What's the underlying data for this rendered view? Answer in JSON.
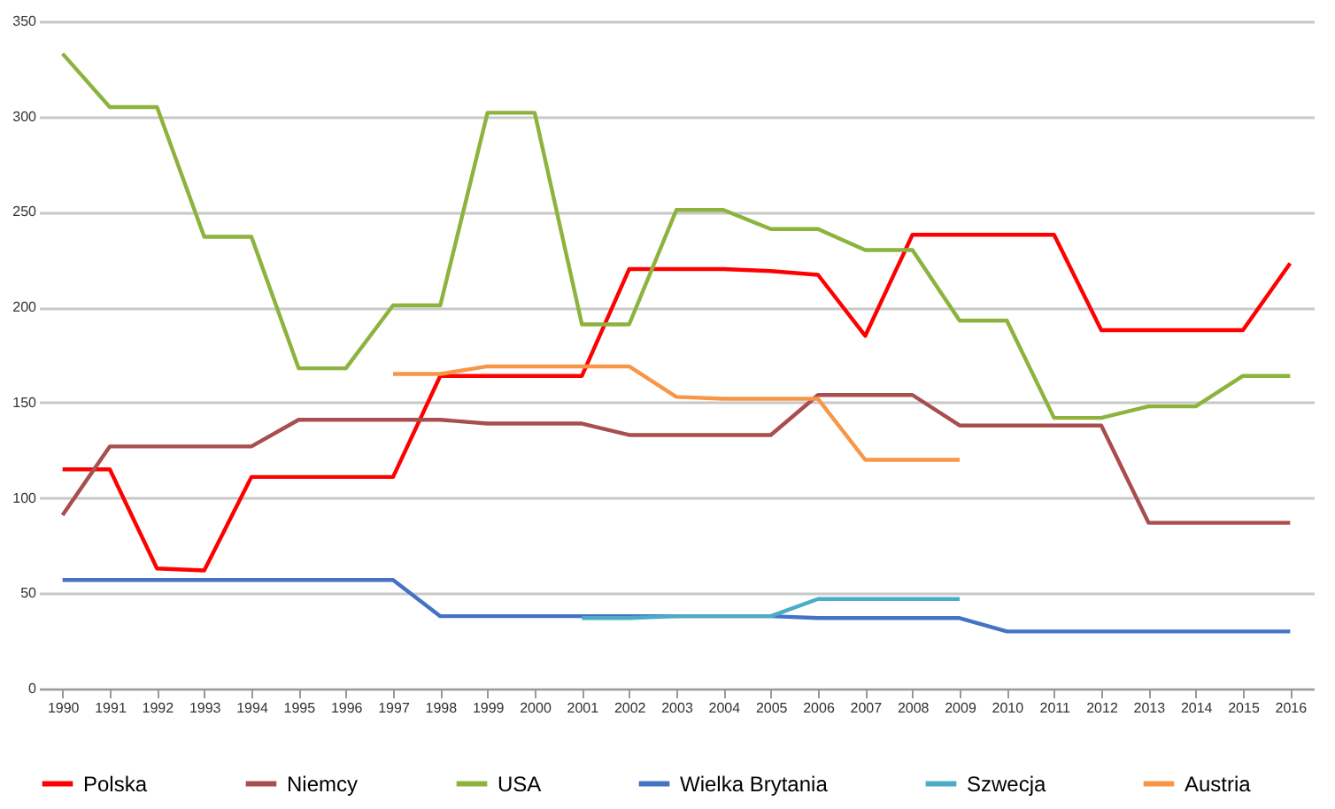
{
  "chart_data": {
    "type": "line",
    "categories": [
      "1990",
      "1991",
      "1992",
      "1993",
      "1994",
      "1995",
      "1996",
      "1997",
      "1998",
      "1999",
      "2000",
      "2001",
      "2002",
      "2003",
      "2004",
      "2005",
      "2006",
      "2007",
      "2008",
      "2009",
      "2010",
      "2011",
      "2012",
      "2013",
      "2014",
      "2015",
      "2016"
    ],
    "series": [
      {
        "name": "Polska",
        "color": "#ff0000",
        "values": [
          115,
          115,
          63,
          62,
          111,
          111,
          111,
          111,
          164,
          164,
          164,
          164,
          220,
          220,
          220,
          219,
          217,
          185,
          238,
          238,
          238,
          238,
          188,
          188,
          188,
          188,
          223
        ]
      },
      {
        "name": "Niemcy",
        "color": "#a84e4e",
        "values": [
          91,
          127,
          127,
          127,
          127,
          141,
          141,
          141,
          141,
          139,
          139,
          139,
          133,
          133,
          133,
          133,
          154,
          154,
          154,
          138,
          138,
          138,
          138,
          87,
          87,
          87,
          87
        ]
      },
      {
        "name": "USA",
        "color": "#8db33e",
        "values": [
          333,
          305,
          305,
          237,
          237,
          168,
          168,
          201,
          201,
          302,
          302,
          191,
          191,
          251,
          251,
          241,
          241,
          230,
          230,
          193,
          193,
          142,
          142,
          148,
          148,
          164,
          164
        ]
      },
      {
        "name": "Wielka Brytania",
        "color": "#4472c4",
        "values": [
          57,
          57,
          57,
          57,
          57,
          57,
          57,
          57,
          38,
          38,
          38,
          38,
          38,
          38,
          38,
          38,
          37,
          37,
          37,
          37,
          30,
          30,
          30,
          30,
          30,
          30,
          30
        ]
      },
      {
        "name": "Szwecja",
        "color": "#4bacc6",
        "values": [
          null,
          null,
          null,
          null,
          null,
          null,
          null,
          null,
          null,
          null,
          null,
          37,
          37,
          38,
          38,
          38,
          47,
          47,
          47,
          47,
          null,
          null,
          null,
          null,
          null,
          null,
          null
        ]
      },
      {
        "name": "Austria",
        "color": "#f79646",
        "values": [
          null,
          null,
          null,
          null,
          null,
          null,
          null,
          165,
          165,
          169,
          169,
          169,
          169,
          153,
          152,
          152,
          152,
          120,
          120,
          120,
          null,
          null,
          null,
          null,
          null,
          null,
          null
        ]
      }
    ],
    "ylim": [
      0,
      350
    ],
    "yticks": [
      0,
      50,
      100,
      150,
      200,
      250,
      300,
      350
    ],
    "grid": "y",
    "legend": "bottom",
    "marker": "none",
    "line_style": "solid"
  }
}
